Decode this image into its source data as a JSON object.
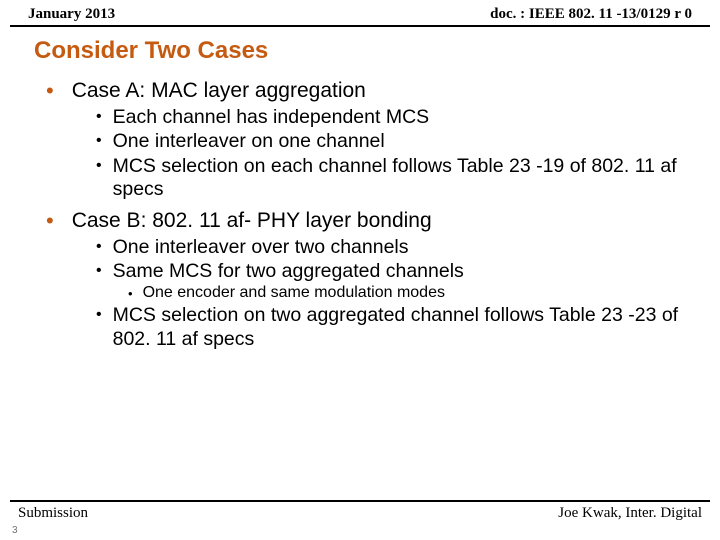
{
  "header": {
    "left": "January 2013",
    "right": "doc. : IEEE 802. 11 -13/0129 r 0"
  },
  "title": "Consider Two Cases",
  "bullet_colors": {
    "l1": "#c55a11",
    "l2": "#000000",
    "l3": "#000000"
  },
  "items": [
    {
      "level": 1,
      "text": "Case A: MAC layer aggregation"
    },
    {
      "level": 2,
      "text": "Each channel has independent MCS"
    },
    {
      "level": 2,
      "text": "One interleaver on one channel"
    },
    {
      "level": 2,
      "text": "MCS selection on each channel follows Table 23 -19 of 802. 11 af specs"
    },
    {
      "level": 1,
      "text": "Case B: 802. 11 af- PHY layer bonding"
    },
    {
      "level": 2,
      "text": "One interleaver over two channels"
    },
    {
      "level": 2,
      "text": "Same MCS for two aggregated channels"
    },
    {
      "level": 3,
      "text": "One encoder and same modulation modes"
    },
    {
      "level": 2,
      "text": "MCS selection on two aggregated channel follows Table 23 -23 of 802. 11 af specs"
    }
  ],
  "footer": {
    "left": "Submission",
    "right": "Joe Kwak, Inter. Digital"
  },
  "page_number": "3"
}
